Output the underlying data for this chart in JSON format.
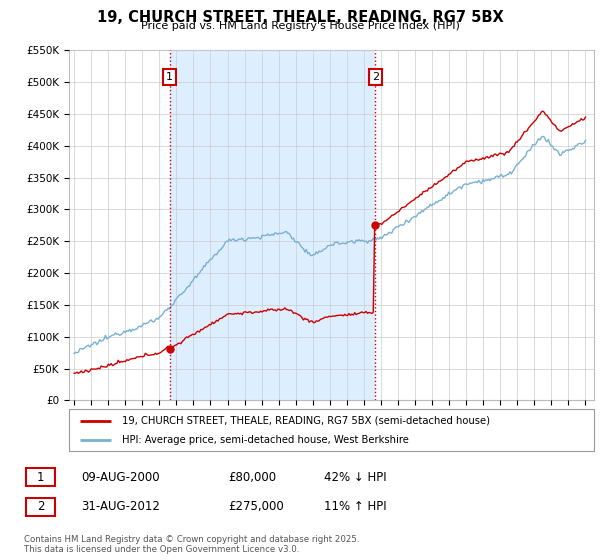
{
  "title": "19, CHURCH STREET, THEALE, READING, RG7 5BX",
  "subtitle": "Price paid vs. HM Land Registry's House Price Index (HPI)",
  "ylabel_ticks": [
    "£0",
    "£50K",
    "£100K",
    "£150K",
    "£200K",
    "£250K",
    "£300K",
    "£350K",
    "£400K",
    "£450K",
    "£500K",
    "£550K"
  ],
  "ytick_values": [
    0,
    50000,
    100000,
    150000,
    200000,
    250000,
    300000,
    350000,
    400000,
    450000,
    500000,
    550000
  ],
  "ylim": [
    0,
    550000
  ],
  "xlim_start": 1994.7,
  "xlim_end": 2025.5,
  "xtick_years": [
    1995,
    1996,
    1997,
    1998,
    1999,
    2000,
    2001,
    2002,
    2003,
    2004,
    2005,
    2006,
    2007,
    2008,
    2009,
    2010,
    2011,
    2012,
    2013,
    2014,
    2015,
    2016,
    2017,
    2018,
    2019,
    2020,
    2021,
    2022,
    2023,
    2024,
    2025
  ],
  "transaction1_date": 2000.6,
  "transaction1_price": 80000,
  "transaction2_date": 2012.67,
  "transaction2_price": 275000,
  "red_line_color": "#cc0000",
  "blue_line_color": "#7ab0d4",
  "shade_color": "#ddeeff",
  "grid_color": "#cccccc",
  "vline_color": "#cc0000",
  "background_color": "#ffffff",
  "legend_label_red": "19, CHURCH STREET, THEALE, READING, RG7 5BX (semi-detached house)",
  "legend_label_blue": "HPI: Average price, semi-detached house, West Berkshire",
  "footer_text": "Contains HM Land Registry data © Crown copyright and database right 2025.\nThis data is licensed under the Open Government Licence v3.0.",
  "table_row1": [
    "1",
    "09-AUG-2000",
    "£80,000",
    "42% ↓ HPI"
  ],
  "table_row2": [
    "2",
    "31-AUG-2012",
    "£275,000",
    "11% ↑ HPI"
  ]
}
